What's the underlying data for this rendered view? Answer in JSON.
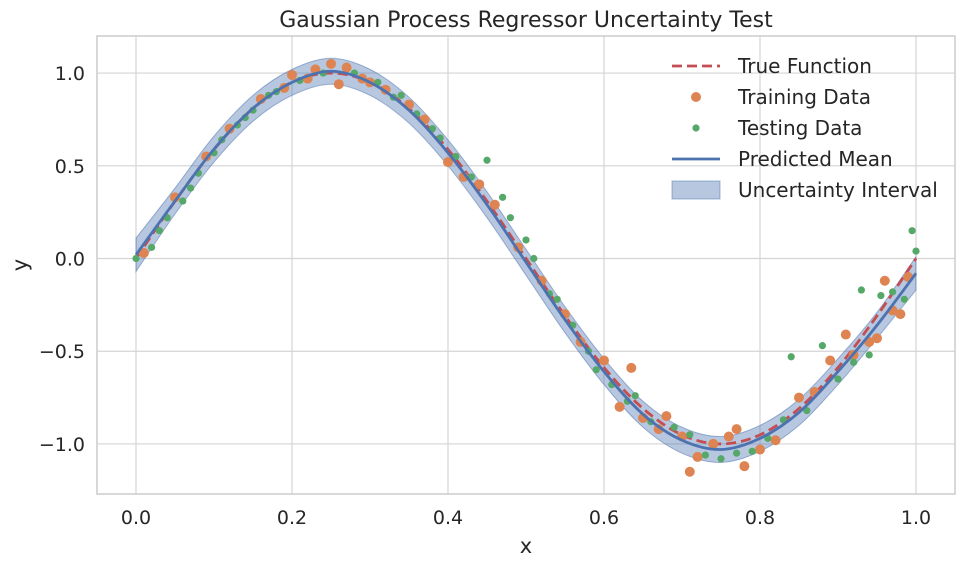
{
  "chart_data": {
    "type": "scatter",
    "title": "Gaussian Process Regressor Uncertainty Test",
    "xlabel": "x",
    "ylabel": "y",
    "xlim": [
      -0.05,
      1.05
    ],
    "ylim": [
      -1.27,
      1.2
    ],
    "xticks": [
      0.0,
      0.2,
      0.4,
      0.6,
      0.8,
      1.0
    ],
    "xtick_labels": [
      "0.0",
      "0.2",
      "0.4",
      "0.6",
      "0.8",
      "1.0"
    ],
    "yticks": [
      -1.0,
      -0.5,
      0.0,
      0.5,
      1.0
    ],
    "ytick_labels": [
      "−1.0",
      "−0.5",
      "0.0",
      "0.5",
      "1.0"
    ],
    "grid": true,
    "legend_position": "top-right",
    "colors": {
      "true_function": "#c44e52",
      "training": "#dd8452",
      "testing": "#55a868",
      "mean": "#4c72b0",
      "interval": "#4c72b0"
    },
    "series": [
      {
        "name": "True Function",
        "kind": "line",
        "style": "dashed",
        "x": [
          0.0,
          0.05,
          0.1,
          0.15,
          0.2,
          0.25,
          0.3,
          0.35,
          0.4,
          0.45,
          0.5,
          0.55,
          0.6,
          0.65,
          0.7,
          0.75,
          0.8,
          0.85,
          0.9,
          0.95,
          1.0
        ],
        "y": [
          0.0,
          0.309,
          0.588,
          0.809,
          0.951,
          1.0,
          0.951,
          0.809,
          0.588,
          0.309,
          0.0,
          -0.309,
          -0.588,
          -0.809,
          -0.951,
          -1.0,
          -0.951,
          -0.809,
          -0.588,
          -0.309,
          0.0
        ]
      },
      {
        "name": "Training Data",
        "kind": "scatter",
        "x": [
          0.01,
          0.05,
          0.09,
          0.12,
          0.16,
          0.19,
          0.2,
          0.22,
          0.23,
          0.25,
          0.26,
          0.27,
          0.29,
          0.3,
          0.32,
          0.35,
          0.37,
          0.4,
          0.42,
          0.44,
          0.46,
          0.49,
          0.52,
          0.55,
          0.57,
          0.6,
          0.62,
          0.635,
          0.65,
          0.67,
          0.68,
          0.7,
          0.71,
          0.72,
          0.74,
          0.76,
          0.77,
          0.78,
          0.8,
          0.82,
          0.85,
          0.87,
          0.89,
          0.91,
          0.92,
          0.94,
          0.95,
          0.96,
          0.97,
          0.98,
          0.99
        ],
        "y": [
          0.03,
          0.33,
          0.55,
          0.7,
          0.86,
          0.92,
          0.99,
          0.97,
          1.02,
          1.05,
          0.94,
          1.03,
          0.97,
          0.95,
          0.91,
          0.83,
          0.75,
          0.52,
          0.44,
          0.4,
          0.29,
          0.06,
          -0.12,
          -0.3,
          -0.45,
          -0.55,
          -0.8,
          -0.59,
          -0.86,
          -0.92,
          -0.85,
          -0.96,
          -1.15,
          -1.07,
          -1.0,
          -0.96,
          -0.92,
          -1.12,
          -1.03,
          -0.98,
          -0.75,
          -0.72,
          -0.55,
          -0.41,
          -0.52,
          -0.45,
          -0.43,
          -0.12,
          -0.28,
          -0.3,
          -0.1
        ]
      },
      {
        "name": "Testing Data",
        "kind": "scatter",
        "x": [
          0.0,
          0.02,
          0.03,
          0.04,
          0.06,
          0.07,
          0.08,
          0.1,
          0.11,
          0.13,
          0.14,
          0.15,
          0.17,
          0.18,
          0.21,
          0.24,
          0.28,
          0.31,
          0.33,
          0.34,
          0.36,
          0.38,
          0.39,
          0.41,
          0.43,
          0.45,
          0.47,
          0.48,
          0.5,
          0.51,
          0.53,
          0.54,
          0.56,
          0.58,
          0.59,
          0.61,
          0.63,
          0.64,
          0.66,
          0.69,
          0.71,
          0.73,
          0.75,
          0.77,
          0.79,
          0.81,
          0.83,
          0.84,
          0.86,
          0.88,
          0.9,
          0.92,
          0.93,
          0.94,
          0.955,
          0.97,
          0.985,
          0.995,
          1.0
        ],
        "y": [
          0.0,
          0.06,
          0.15,
          0.22,
          0.31,
          0.38,
          0.46,
          0.57,
          0.64,
          0.72,
          0.76,
          0.8,
          0.88,
          0.9,
          0.96,
          1.0,
          1.0,
          0.95,
          0.87,
          0.88,
          0.78,
          0.7,
          0.65,
          0.55,
          0.44,
          0.53,
          0.33,
          0.22,
          0.1,
          0.0,
          -0.19,
          -0.22,
          -0.36,
          -0.5,
          -0.6,
          -0.68,
          -0.77,
          -0.74,
          -0.88,
          -0.91,
          -0.95,
          -1.06,
          -1.08,
          -1.05,
          -1.04,
          -0.97,
          -0.87,
          -0.53,
          -0.82,
          -0.47,
          -0.65,
          -0.56,
          -0.17,
          -0.52,
          -0.2,
          -0.18,
          -0.22,
          0.15,
          0.04
        ]
      },
      {
        "name": "Predicted Mean",
        "kind": "line",
        "style": "solid",
        "x": [
          0.0,
          0.05,
          0.1,
          0.15,
          0.2,
          0.25,
          0.3,
          0.35,
          0.4,
          0.45,
          0.5,
          0.55,
          0.6,
          0.65,
          0.7,
          0.75,
          0.8,
          0.85,
          0.9,
          0.95,
          1.0
        ],
        "y": [
          0.02,
          0.31,
          0.59,
          0.81,
          0.95,
          1.01,
          0.95,
          0.8,
          0.57,
          0.29,
          -0.02,
          -0.33,
          -0.61,
          -0.84,
          -0.98,
          -1.03,
          -0.97,
          -0.83,
          -0.61,
          -0.36,
          -0.08
        ]
      },
      {
        "name": "Uncertainty Interval",
        "kind": "band",
        "x": [
          0.0,
          0.05,
          0.1,
          0.15,
          0.2,
          0.25,
          0.3,
          0.35,
          0.4,
          0.45,
          0.5,
          0.55,
          0.6,
          0.65,
          0.7,
          0.75,
          0.8,
          0.85,
          0.9,
          0.95,
          1.0
        ],
        "lower": [
          -0.07,
          0.24,
          0.52,
          0.74,
          0.88,
          0.94,
          0.88,
          0.73,
          0.5,
          0.22,
          -0.09,
          -0.4,
          -0.68,
          -0.91,
          -1.05,
          -1.1,
          -1.04,
          -0.9,
          -0.68,
          -0.43,
          -0.17
        ],
        "upper": [
          0.11,
          0.38,
          0.66,
          0.88,
          1.02,
          1.08,
          1.02,
          0.87,
          0.64,
          0.36,
          0.05,
          -0.26,
          -0.54,
          -0.77,
          -0.91,
          -0.96,
          -0.9,
          -0.76,
          -0.54,
          -0.29,
          0.01
        ]
      }
    ]
  }
}
